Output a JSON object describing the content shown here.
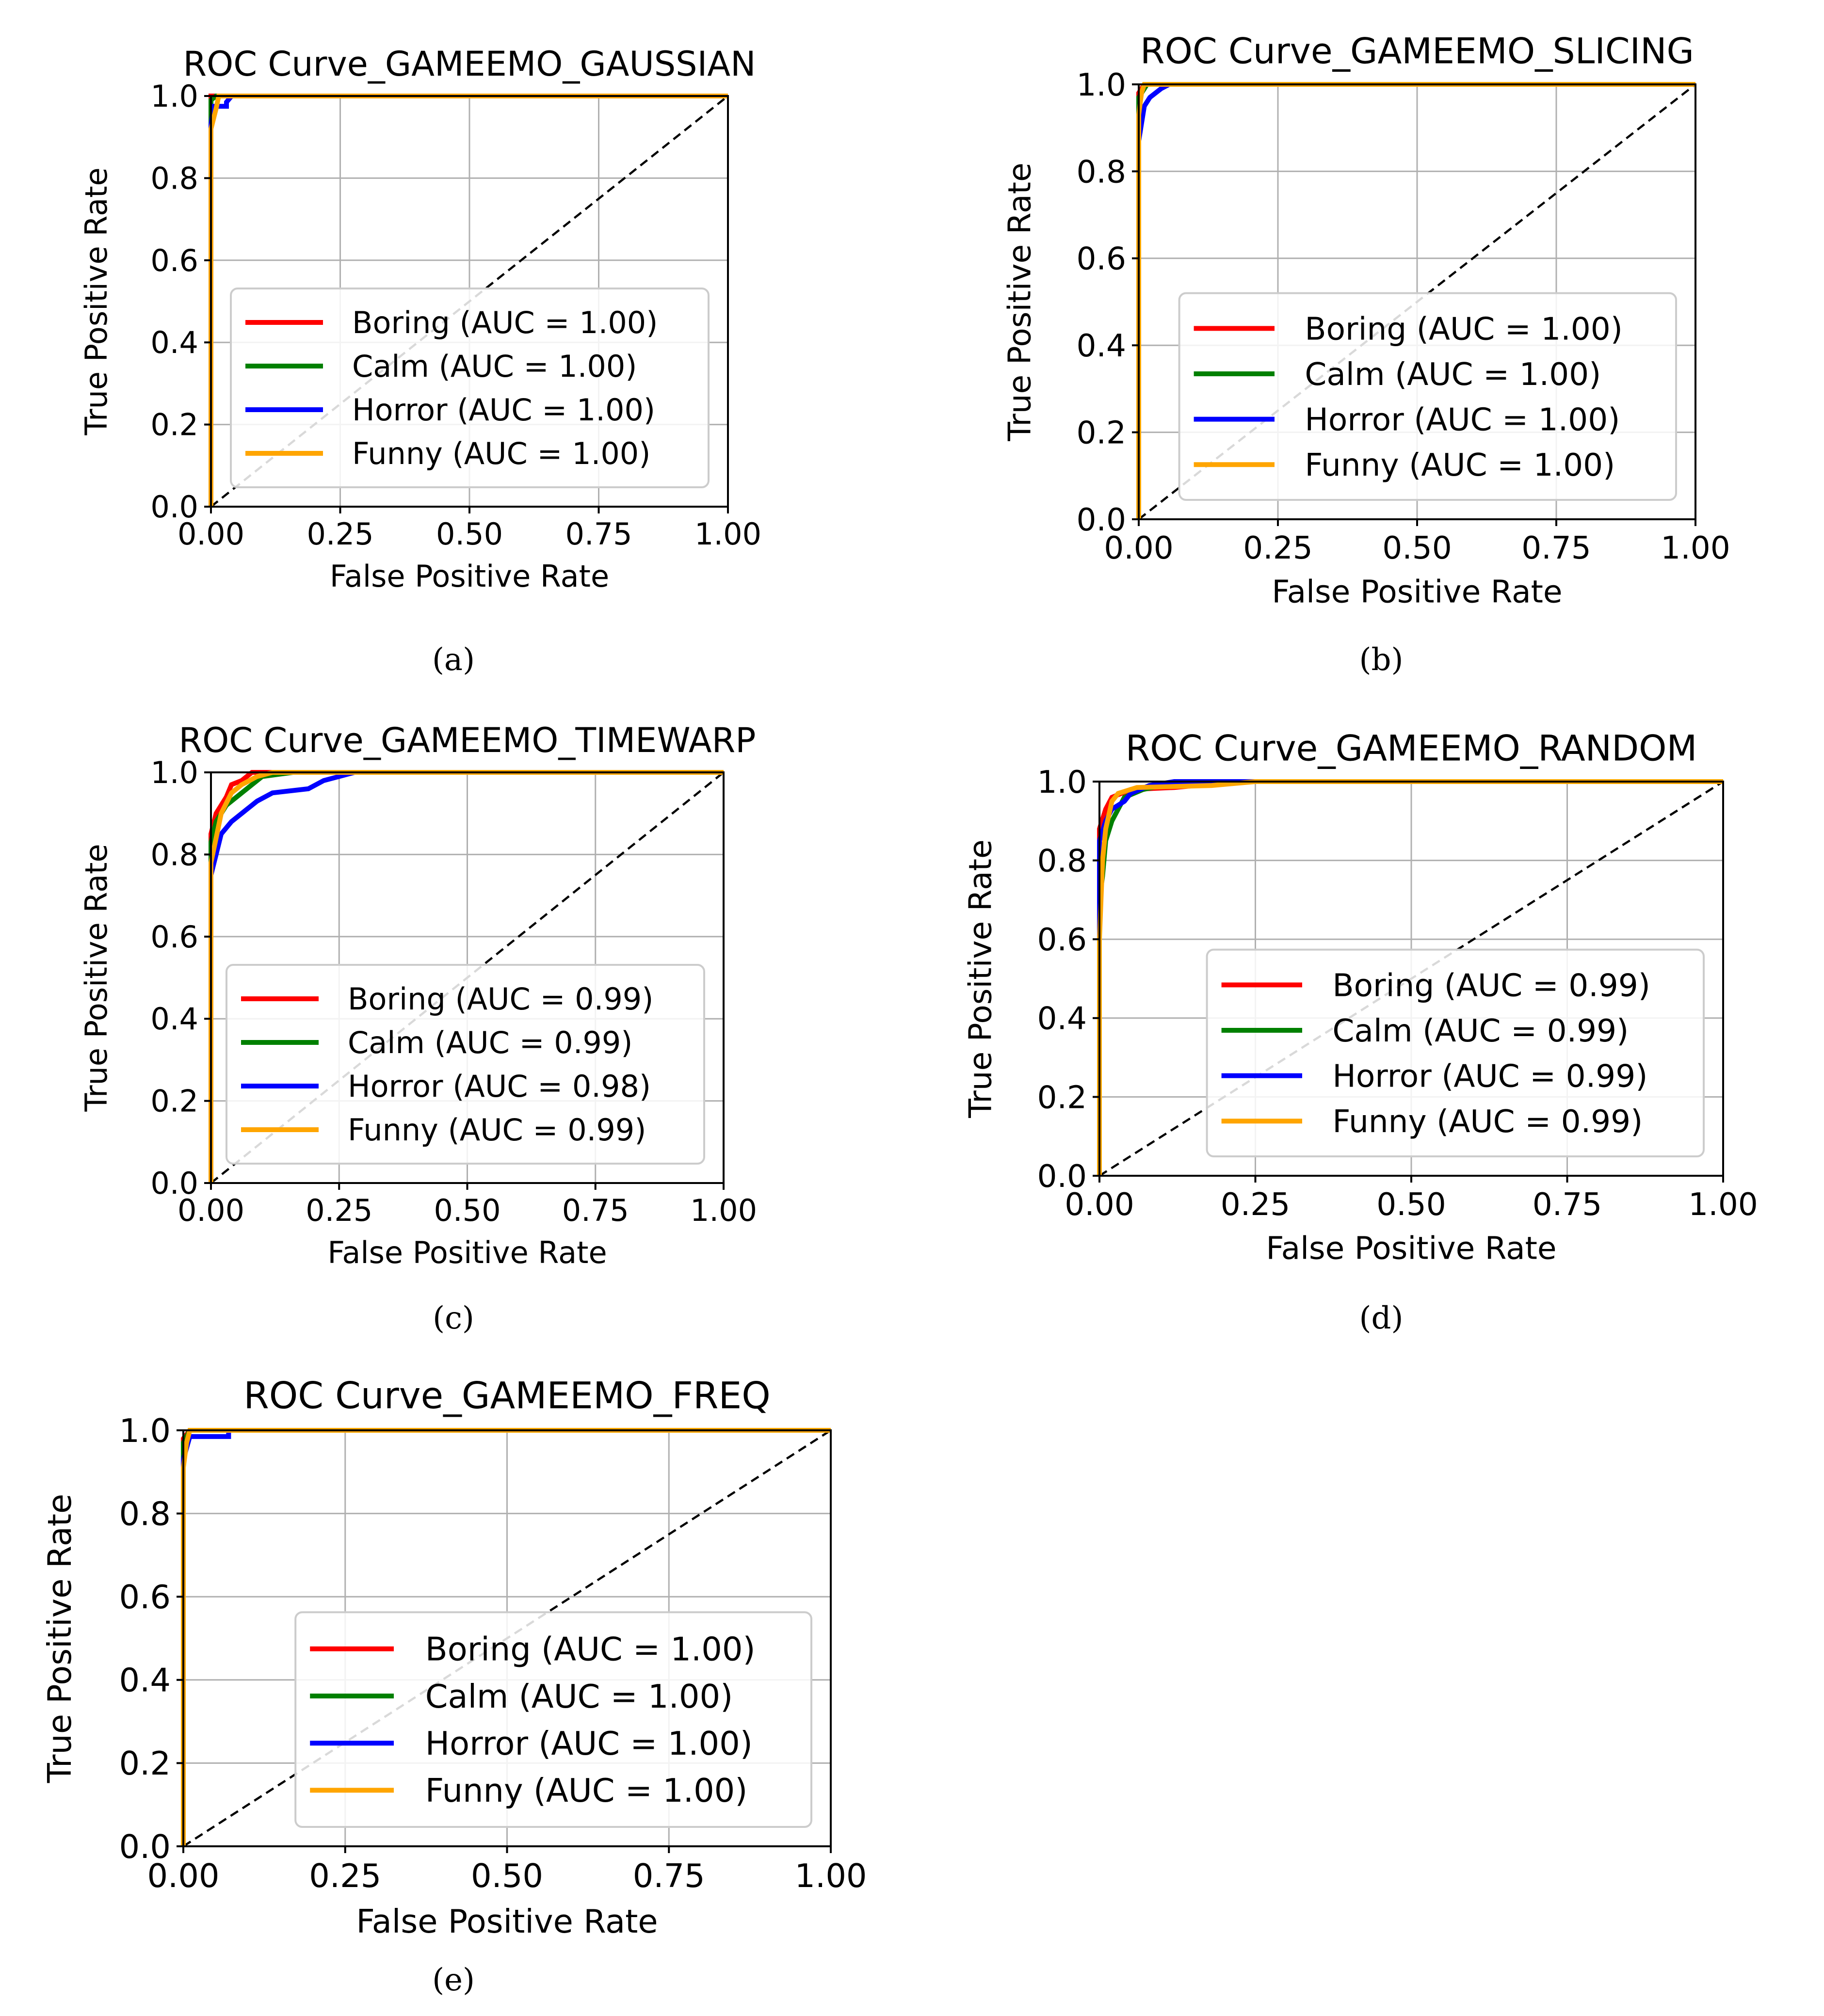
{
  "chart_data": [
    {
      "type": "line",
      "subfigure_label": "(a)",
      "title": "ROC Curve_GAMEEMO_GAUSSIAN",
      "xlabel": "False Positive Rate",
      "ylabel": "True Positive Rate",
      "xlim": [
        0,
        1
      ],
      "ylim": [
        0,
        1
      ],
      "x_ticks": [
        "0.00",
        "0.25",
        "0.50",
        "0.75",
        "1.00"
      ],
      "y_ticks": [
        "0.0",
        "0.2",
        "0.4",
        "0.6",
        "0.8",
        "1.0"
      ],
      "grid": true,
      "legend_position": "lower-right",
      "series": [
        {
          "name": "Boring (AUC = 1.00)",
          "color": "#ff0000",
          "points": [
            [
              0,
              0
            ],
            [
              0,
              1
            ],
            [
              1,
              1
            ]
          ]
        },
        {
          "name": "Calm (AUC = 1.00)",
          "color": "#008000",
          "points": [
            [
              0,
              0
            ],
            [
              0,
              0.99
            ],
            [
              0.01,
              1
            ],
            [
              1,
              1
            ]
          ]
        },
        {
          "name": "Horror (AUC = 1.00)",
          "color": "#0000ff",
          "points": [
            [
              0,
              0
            ],
            [
              0,
              0.93
            ],
            [
              0.005,
              0.975
            ],
            [
              0.03,
              0.975
            ],
            [
              0.03,
              0.985
            ],
            [
              0.04,
              1
            ],
            [
              1,
              1
            ]
          ]
        },
        {
          "name": "Funny (AUC = 1.00)",
          "color": "#ffa500",
          "points": [
            [
              0,
              0
            ],
            [
              0,
              0.92
            ],
            [
              0.01,
              0.97
            ],
            [
              0.015,
              1
            ],
            [
              1,
              1
            ]
          ]
        }
      ]
    },
    {
      "type": "line",
      "subfigure_label": "(b)",
      "title": "ROC Curve_GAMEEMO_SLICING",
      "xlabel": "False Positive Rate",
      "ylabel": "True Positive Rate",
      "xlim": [
        0,
        1
      ],
      "ylim": [
        0,
        1
      ],
      "x_ticks": [
        "0.00",
        "0.25",
        "0.50",
        "0.75",
        "1.00"
      ],
      "y_ticks": [
        "0.0",
        "0.2",
        "0.4",
        "0.6",
        "0.8",
        "1.0"
      ],
      "grid": true,
      "legend_position": "lower-right",
      "series": [
        {
          "name": "Boring (AUC = 1.00)",
          "color": "#ff0000",
          "points": [
            [
              0,
              0
            ],
            [
              0,
              0.98
            ],
            [
              0.01,
              1
            ],
            [
              1,
              1
            ]
          ]
        },
        {
          "name": "Calm (AUC = 1.00)",
          "color": "#008000",
          "points": [
            [
              0,
              0
            ],
            [
              0,
              0.97
            ],
            [
              0.015,
              1
            ],
            [
              1,
              1
            ]
          ]
        },
        {
          "name": "Horror (AUC = 1.00)",
          "color": "#0000ff",
          "points": [
            [
              0,
              0
            ],
            [
              0,
              0.87
            ],
            [
              0.01,
              0.95
            ],
            [
              0.02,
              0.97
            ],
            [
              0.04,
              0.99
            ],
            [
              0.055,
              1
            ],
            [
              1,
              1
            ]
          ]
        },
        {
          "name": "Funny (AUC = 1.00)",
          "color": "#ffa500",
          "points": [
            [
              0,
              0
            ],
            [
              0,
              0.93
            ],
            [
              0.005,
              0.98
            ],
            [
              0.01,
              1
            ],
            [
              1,
              1
            ]
          ]
        }
      ]
    },
    {
      "type": "line",
      "subfigure_label": "(c)",
      "title": "ROC Curve_GAMEEMO_TIMEWARP",
      "xlabel": "False Positive Rate",
      "ylabel": "True Positive Rate",
      "xlim": [
        0,
        1
      ],
      "ylim": [
        0,
        1
      ],
      "x_ticks": [
        "0.00",
        "0.25",
        "0.50",
        "0.75",
        "1.00"
      ],
      "y_ticks": [
        "0.0",
        "0.2",
        "0.4",
        "0.6",
        "0.8",
        "1.0"
      ],
      "grid": true,
      "legend_position": "lower-right",
      "series": [
        {
          "name": "Boring (AUC = 0.99)",
          "color": "#ff0000",
          "points": [
            [
              0,
              0
            ],
            [
              0,
              0.85
            ],
            [
              0.01,
              0.9
            ],
            [
              0.03,
              0.94
            ],
            [
              0.04,
              0.97
            ],
            [
              0.06,
              0.98
            ],
            [
              0.08,
              1
            ],
            [
              1,
              1
            ]
          ]
        },
        {
          "name": "Calm (AUC = 0.99)",
          "color": "#008000",
          "points": [
            [
              0,
              0
            ],
            [
              0,
              0.83
            ],
            [
              0.01,
              0.88
            ],
            [
              0.03,
              0.92
            ],
            [
              0.05,
              0.94
            ],
            [
              0.08,
              0.97
            ],
            [
              0.1,
              0.99
            ],
            [
              0.16,
              1
            ],
            [
              1,
              1
            ]
          ]
        },
        {
          "name": "Horror (AUC = 0.98)",
          "color": "#0000ff",
          "points": [
            [
              0,
              0
            ],
            [
              0,
              0.75
            ],
            [
              0.01,
              0.8
            ],
            [
              0.02,
              0.85
            ],
            [
              0.04,
              0.88
            ],
            [
              0.06,
              0.9
            ],
            [
              0.09,
              0.93
            ],
            [
              0.12,
              0.95
            ],
            [
              0.19,
              0.96
            ],
            [
              0.22,
              0.98
            ],
            [
              0.28,
              1
            ],
            [
              1,
              1
            ]
          ]
        },
        {
          "name": "Funny (AUC = 0.99)",
          "color": "#ffa500",
          "points": [
            [
              0,
              0
            ],
            [
              0,
              0.78
            ],
            [
              0.01,
              0.84
            ],
            [
              0.02,
              0.9
            ],
            [
              0.04,
              0.95
            ],
            [
              0.06,
              0.97
            ],
            [
              0.09,
              0.99
            ],
            [
              0.12,
              1
            ],
            [
              1,
              1
            ]
          ]
        }
      ]
    },
    {
      "type": "line",
      "subfigure_label": "(d)",
      "title": "ROC Curve_GAMEEMO_RANDOM",
      "xlabel": "False Positive Rate",
      "ylabel": "True Positive Rate",
      "xlim": [
        0,
        1
      ],
      "ylim": [
        0,
        1
      ],
      "x_ticks": [
        "0.00",
        "0.25",
        "0.50",
        "0.75",
        "1.00"
      ],
      "y_ticks": [
        "0.0",
        "0.2",
        "0.4",
        "0.6",
        "0.8",
        "1.0"
      ],
      "grid": true,
      "legend_position": "lower-right",
      "series": [
        {
          "name": "Boring (AUC = 0.99)",
          "color": "#ff0000",
          "points": [
            [
              0,
              0
            ],
            [
              0,
              0.88
            ],
            [
              0.01,
              0.93
            ],
            [
              0.02,
              0.96
            ],
            [
              0.05,
              0.98
            ],
            [
              0.12,
              0.985
            ],
            [
              0.22,
              1
            ],
            [
              1,
              1
            ]
          ]
        },
        {
          "name": "Calm (AUC = 0.99)",
          "color": "#008000",
          "points": [
            [
              0,
              0
            ],
            [
              0,
              0.7
            ],
            [
              0.005,
              0.76
            ],
            [
              0.01,
              0.85
            ],
            [
              0.02,
              0.9
            ],
            [
              0.04,
              0.96
            ],
            [
              0.07,
              0.98
            ],
            [
              0.1,
              0.99
            ],
            [
              0.13,
              1
            ],
            [
              1,
              1
            ]
          ]
        },
        {
          "name": "Horror (AUC = 0.99)",
          "color": "#0000ff",
          "points": [
            [
              0,
              0
            ],
            [
              0,
              0.85
            ],
            [
              0.01,
              0.9
            ],
            [
              0.02,
              0.93
            ],
            [
              0.04,
              0.95
            ],
            [
              0.05,
              0.97
            ],
            [
              0.08,
              0.99
            ],
            [
              0.12,
              1
            ],
            [
              1,
              1
            ]
          ]
        },
        {
          "name": "Funny (AUC = 0.99)",
          "color": "#ffa500",
          "points": [
            [
              0,
              0
            ],
            [
              0,
              0.6
            ],
            [
              0.005,
              0.8
            ],
            [
              0.01,
              0.88
            ],
            [
              0.02,
              0.95
            ],
            [
              0.03,
              0.97
            ],
            [
              0.06,
              0.985
            ],
            [
              0.18,
              0.99
            ],
            [
              0.25,
              1
            ],
            [
              1,
              1
            ]
          ]
        }
      ]
    },
    {
      "type": "line",
      "subfigure_label": "(e)",
      "title": "ROC Curve_GAMEEMO_FREQ",
      "xlabel": "False Positive Rate",
      "ylabel": "True Positive Rate",
      "xlim": [
        0,
        1
      ],
      "ylim": [
        0,
        1
      ],
      "x_ticks": [
        "0.00",
        "0.25",
        "0.50",
        "0.75",
        "1.00"
      ],
      "y_ticks": [
        "0.0",
        "0.2",
        "0.4",
        "0.6",
        "0.8",
        "1.0"
      ],
      "grid": true,
      "legend_position": "lower-right",
      "series": [
        {
          "name": "Boring (AUC = 1.00)",
          "color": "#ff0000",
          "points": [
            [
              0,
              0
            ],
            [
              0,
              0.98
            ],
            [
              0.01,
              1
            ],
            [
              1,
              1
            ]
          ]
        },
        {
          "name": "Calm (AUC = 1.00)",
          "color": "#008000",
          "points": [
            [
              0,
              0
            ],
            [
              0,
              0.97
            ],
            [
              0.01,
              1
            ],
            [
              1,
              1
            ]
          ]
        },
        {
          "name": "Horror (AUC = 1.00)",
          "color": "#0000ff",
          "points": [
            [
              0,
              0
            ],
            [
              0,
              0.93
            ],
            [
              0.01,
              0.985
            ],
            [
              0.07,
              0.985
            ],
            [
              0.07,
              1
            ],
            [
              1,
              1
            ]
          ]
        },
        {
          "name": "Funny (AUC = 1.00)",
          "color": "#ffa500",
          "points": [
            [
              0,
              0
            ],
            [
              0,
              0.91
            ],
            [
              0.005,
              0.97
            ],
            [
              0.01,
              1
            ],
            [
              1,
              1
            ]
          ]
        }
      ]
    }
  ]
}
